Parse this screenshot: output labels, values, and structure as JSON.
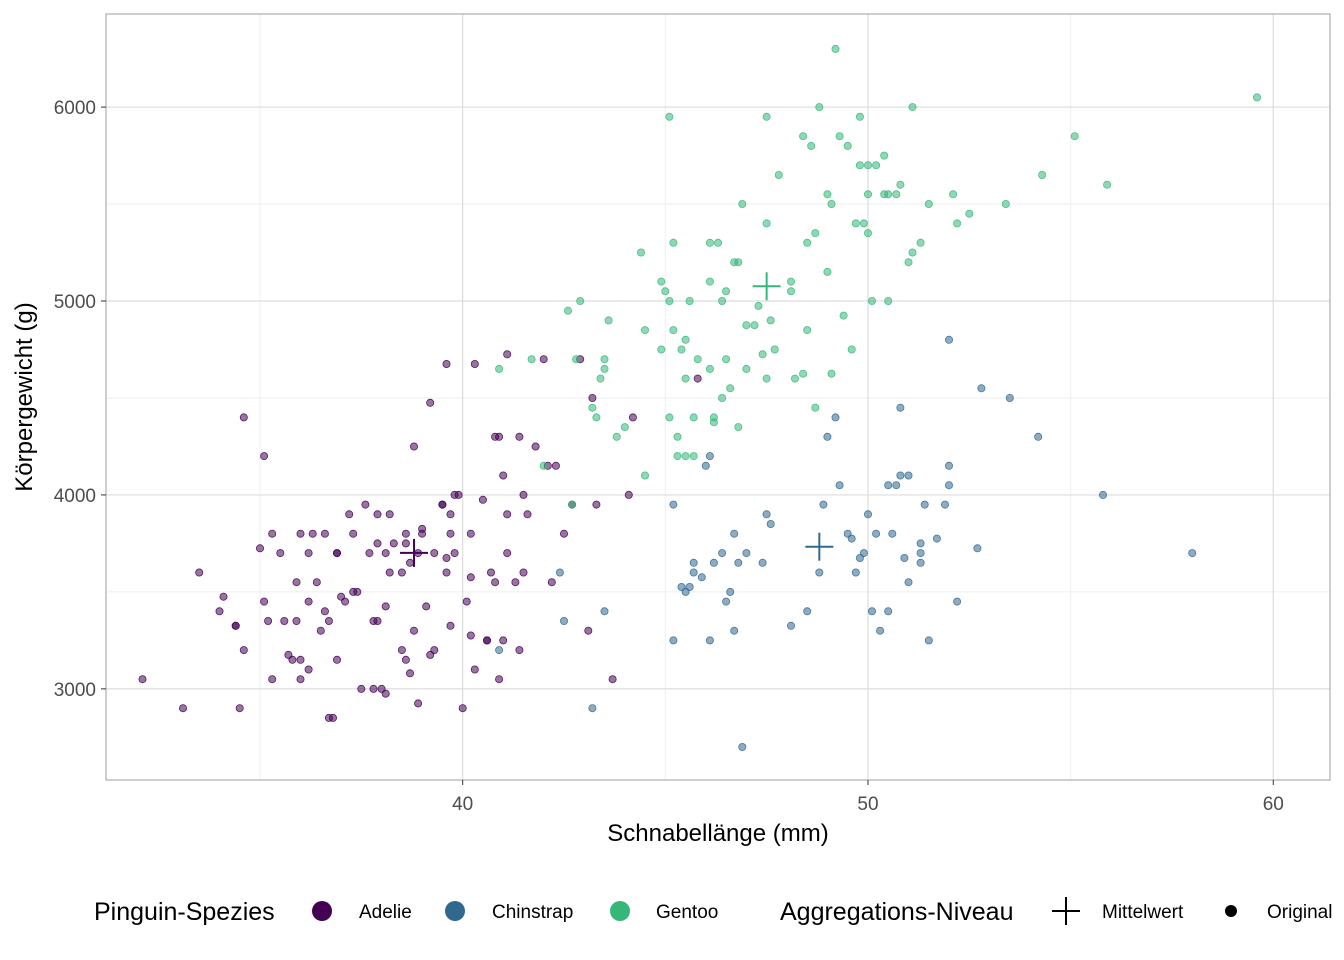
{
  "chart_data": {
    "type": "scatter",
    "title": "",
    "xlabel": "Schnabellänge (mm)",
    "ylabel": "Körpergewicht (g)",
    "xlim": [
      31.2,
      61.4
    ],
    "ylim": [
      2530,
      6480
    ],
    "x_ticks": [
      40,
      50,
      60
    ],
    "y_ticks": [
      3000,
      4000,
      5000,
      6000
    ],
    "grid": true,
    "legend_position": "bottom",
    "colors": {
      "Adelie": "#440154",
      "Chinstrap": "#31688e",
      "Gentoo": "#35b779",
      "panel_border": "#b3b3b3",
      "grid_major": "#dcdcdc",
      "grid_minor": "#efefef"
    },
    "legend": {
      "species_title": "Pinguin-Spezies",
      "species": [
        "Adelie",
        "Chinstrap",
        "Gentoo"
      ],
      "aggregation_title": "Aggregations-Niveau",
      "aggregation": [
        "Mittelwert",
        "Original"
      ]
    },
    "means": [
      {
        "name": "Adelie",
        "x": 38.8,
        "y": 3701
      },
      {
        "name": "Chinstrap",
        "x": 48.8,
        "y": 3733
      },
      {
        "name": "Gentoo",
        "x": 47.5,
        "y": 5076
      }
    ],
    "series": [
      {
        "name": "Adelie",
        "points": [
          [
            32.1,
            3050
          ],
          [
            33.1,
            2900
          ],
          [
            33.5,
            3600
          ],
          [
            34.0,
            3400
          ],
          [
            34.1,
            3475
          ],
          [
            34.4,
            3325
          ],
          [
            34.5,
            2900
          ],
          [
            34.6,
            4400
          ],
          [
            34.6,
            3200
          ],
          [
            35.0,
            3725
          ],
          [
            35.1,
            3450
          ],
          [
            35.1,
            4200
          ],
          [
            35.3,
            3050
          ],
          [
            35.3,
            3800
          ],
          [
            35.5,
            3700
          ],
          [
            35.6,
            3350
          ],
          [
            35.7,
            3175
          ],
          [
            35.8,
            3150
          ],
          [
            35.9,
            3550
          ],
          [
            35.9,
            3350
          ],
          [
            36.0,
            3800
          ],
          [
            36.0,
            3050
          ],
          [
            36.2,
            3450
          ],
          [
            36.2,
            3700
          ],
          [
            36.2,
            3100
          ],
          [
            36.3,
            3800
          ],
          [
            36.4,
            3550
          ],
          [
            36.5,
            3300
          ],
          [
            36.6,
            3400
          ],
          [
            36.7,
            3350
          ],
          [
            36.7,
            2850
          ],
          [
            36.8,
            2850
          ],
          [
            36.9,
            3150
          ],
          [
            36.9,
            3700
          ],
          [
            37.0,
            3475
          ],
          [
            37.1,
            3450
          ],
          [
            37.3,
            3500
          ],
          [
            37.3,
            3800
          ],
          [
            37.4,
            3500
          ],
          [
            37.5,
            3000
          ],
          [
            37.7,
            3700
          ],
          [
            37.8,
            3000
          ],
          [
            37.9,
            3750
          ],
          [
            37.9,
            3900
          ],
          [
            37.9,
            3350
          ],
          [
            38.0,
            3000
          ],
          [
            38.1,
            3700
          ],
          [
            38.1,
            2975
          ],
          [
            38.2,
            3600
          ],
          [
            38.2,
            3900
          ],
          [
            38.3,
            3750
          ],
          [
            38.5,
            3600
          ],
          [
            38.5,
            3200
          ],
          [
            38.6,
            3150
          ],
          [
            38.6,
            3750
          ],
          [
            38.7,
            3080
          ],
          [
            38.8,
            3300
          ],
          [
            38.8,
            4250
          ],
          [
            38.9,
            3700
          ],
          [
            38.9,
            2925
          ],
          [
            39.0,
            3825
          ],
          [
            39.1,
            3425
          ],
          [
            39.2,
            3175
          ],
          [
            39.2,
            4475
          ],
          [
            39.3,
            3700
          ],
          [
            39.5,
            3950
          ],
          [
            39.5,
            3950
          ],
          [
            39.6,
            3675
          ],
          [
            39.6,
            3600
          ],
          [
            39.7,
            3325
          ],
          [
            39.7,
            3800
          ],
          [
            39.8,
            3700
          ],
          [
            40.0,
            2900
          ],
          [
            40.1,
            3450
          ],
          [
            40.2,
            3575
          ],
          [
            40.2,
            3275
          ],
          [
            40.2,
            3800
          ],
          [
            40.3,
            3100
          ],
          [
            40.6,
            3250
          ],
          [
            40.6,
            3250
          ],
          [
            40.7,
            3600
          ],
          [
            40.8,
            3550
          ],
          [
            40.9,
            3050
          ],
          [
            41.0,
            3250
          ],
          [
            41.1,
            3900
          ],
          [
            41.3,
            3550
          ],
          [
            41.4,
            3200
          ],
          [
            41.6,
            3900
          ],
          [
            41.8,
            4250
          ],
          [
            42.0,
            4700
          ],
          [
            42.2,
            3550
          ],
          [
            42.3,
            4150
          ],
          [
            42.5,
            3800
          ],
          [
            42.7,
            3950
          ],
          [
            43.1,
            3300
          ],
          [
            43.3,
            3950
          ],
          [
            43.7,
            3050
          ],
          [
            44.1,
            4000
          ],
          [
            44.2,
            4400
          ],
          [
            45.8,
            4600
          ],
          [
            39.6,
            4675
          ],
          [
            39.7,
            3900
          ],
          [
            39.9,
            4000
          ],
          [
            40.3,
            4675
          ],
          [
            40.9,
            4300
          ],
          [
            41.0,
            4100
          ],
          [
            41.1,
            4725
          ],
          [
            41.4,
            4300
          ],
          [
            41.5,
            3600
          ],
          [
            42.9,
            4700
          ],
          [
            36.6,
            3800
          ],
          [
            37.2,
            3900
          ],
          [
            37.6,
            3950
          ],
          [
            38.1,
            3425
          ],
          [
            38.7,
            3650
          ],
          [
            39.0,
            3800
          ],
          [
            39.3,
            3200
          ],
          [
            39.8,
            4000
          ],
          [
            40.5,
            3975
          ],
          [
            40.8,
            4300
          ],
          [
            41.1,
            3700
          ],
          [
            41.5,
            4000
          ],
          [
            42.1,
            4150
          ],
          [
            43.2,
            4500
          ],
          [
            34.4,
            3325
          ],
          [
            35.2,
            3350
          ],
          [
            36.0,
            3150
          ],
          [
            36.9,
            3700
          ],
          [
            37.8,
            3350
          ],
          [
            38.6,
            3800
          ]
        ]
      },
      {
        "name": "Chinstrap",
        "points": [
          [
            40.9,
            3200
          ],
          [
            42.4,
            3600
          ],
          [
            42.5,
            3350
          ],
          [
            43.2,
            2900
          ],
          [
            43.5,
            3400
          ],
          [
            45.2,
            3250
          ],
          [
            45.2,
            3950
          ],
          [
            45.4,
            3525
          ],
          [
            45.5,
            3500
          ],
          [
            45.6,
            3525
          ],
          [
            45.7,
            3650
          ],
          [
            45.7,
            3600
          ],
          [
            45.9,
            3575
          ],
          [
            46.0,
            4150
          ],
          [
            46.1,
            3250
          ],
          [
            46.2,
            3650
          ],
          [
            46.4,
            3700
          ],
          [
            46.5,
            3450
          ],
          [
            46.6,
            3500
          ],
          [
            46.7,
            3800
          ],
          [
            46.8,
            3650
          ],
          [
            46.9,
            2700
          ],
          [
            47.0,
            3700
          ],
          [
            47.5,
            3900
          ],
          [
            47.6,
            3850
          ],
          [
            48.1,
            3325
          ],
          [
            48.5,
            3400
          ],
          [
            48.8,
            3600
          ],
          [
            48.9,
            3950
          ],
          [
            49.0,
            4300
          ],
          [
            49.2,
            4400
          ],
          [
            49.3,
            4050
          ],
          [
            49.5,
            3800
          ],
          [
            49.6,
            3775
          ],
          [
            49.7,
            3600
          ],
          [
            49.8,
            3675
          ],
          [
            50.0,
            3900
          ],
          [
            50.1,
            3400
          ],
          [
            50.2,
            3800
          ],
          [
            50.3,
            3300
          ],
          [
            50.5,
            3400
          ],
          [
            50.5,
            4050
          ],
          [
            50.6,
            3800
          ],
          [
            50.7,
            4050
          ],
          [
            50.8,
            4450
          ],
          [
            50.9,
            3675
          ],
          [
            51.0,
            3550
          ],
          [
            51.0,
            4100
          ],
          [
            51.3,
            3650
          ],
          [
            51.3,
            3750
          ],
          [
            51.3,
            3700
          ],
          [
            51.4,
            3950
          ],
          [
            51.5,
            3250
          ],
          [
            51.7,
            3775
          ],
          [
            51.9,
            3950
          ],
          [
            52.0,
            4050
          ],
          [
            52.0,
            4800
          ],
          [
            52.0,
            4150
          ],
          [
            52.2,
            3450
          ],
          [
            52.7,
            3725
          ],
          [
            52.8,
            4550
          ],
          [
            53.5,
            4500
          ],
          [
            54.2,
            4300
          ],
          [
            55.8,
            4000
          ],
          [
            58.0,
            3700
          ],
          [
            46.7,
            3300
          ],
          [
            47.4,
            3650
          ],
          [
            49.9,
            3700
          ],
          [
            50.8,
            4100
          ],
          [
            46.1,
            4200
          ]
        ]
      },
      {
        "name": "Gentoo",
        "points": [
          [
            40.9,
            4650
          ],
          [
            41.7,
            4700
          ],
          [
            42.0,
            4150
          ],
          [
            42.6,
            4950
          ],
          [
            42.7,
            3950
          ],
          [
            42.8,
            4700
          ],
          [
            42.9,
            5000
          ],
          [
            43.2,
            4450
          ],
          [
            43.3,
            4400
          ],
          [
            43.4,
            4600
          ],
          [
            43.5,
            4650
          ],
          [
            43.5,
            4700
          ],
          [
            43.6,
            4900
          ],
          [
            43.8,
            4300
          ],
          [
            44.0,
            4350
          ],
          [
            44.4,
            5250
          ],
          [
            44.5,
            4100
          ],
          [
            44.5,
            4850
          ],
          [
            44.9,
            4750
          ],
          [
            44.9,
            5100
          ],
          [
            45.0,
            5050
          ],
          [
            45.1,
            5000
          ],
          [
            45.1,
            4400
          ],
          [
            45.2,
            5300
          ],
          [
            45.2,
            4850
          ],
          [
            45.3,
            4300
          ],
          [
            45.3,
            4200
          ],
          [
            45.4,
            4750
          ],
          [
            45.5,
            4800
          ],
          [
            45.5,
            4200
          ],
          [
            45.6,
            5000
          ],
          [
            45.7,
            4400
          ],
          [
            45.7,
            4200
          ],
          [
            45.8,
            4700
          ],
          [
            46.1,
            4650
          ],
          [
            46.1,
            5100
          ],
          [
            46.2,
            4400
          ],
          [
            46.2,
            4375
          ],
          [
            46.3,
            5300
          ],
          [
            46.4,
            5000
          ],
          [
            46.5,
            4700
          ],
          [
            46.5,
            5050
          ],
          [
            46.6,
            4550
          ],
          [
            46.8,
            5200
          ],
          [
            46.8,
            4350
          ],
          [
            46.9,
            5500
          ],
          [
            47.0,
            4875
          ],
          [
            47.2,
            4875
          ],
          [
            47.3,
            4975
          ],
          [
            47.4,
            4725
          ],
          [
            47.5,
            5400
          ],
          [
            47.6,
            4900
          ],
          [
            47.7,
            4750
          ],
          [
            47.8,
            5650
          ],
          [
            48.1,
            5100
          ],
          [
            48.2,
            4600
          ],
          [
            48.4,
            5850
          ],
          [
            48.4,
            4625
          ],
          [
            48.5,
            5300
          ],
          [
            48.6,
            5800
          ],
          [
            48.7,
            5350
          ],
          [
            48.8,
            6000
          ],
          [
            49.0,
            5550
          ],
          [
            49.1,
            5500
          ],
          [
            49.1,
            4625
          ],
          [
            49.2,
            6300
          ],
          [
            49.3,
            5850
          ],
          [
            49.4,
            4925
          ],
          [
            49.5,
            5800
          ],
          [
            49.6,
            4750
          ],
          [
            49.8,
            5700
          ],
          [
            49.8,
            5950
          ],
          [
            49.9,
            5400
          ],
          [
            50.0,
            5700
          ],
          [
            50.0,
            5350
          ],
          [
            50.1,
            5000
          ],
          [
            50.2,
            5700
          ],
          [
            50.4,
            5550
          ],
          [
            50.5,
            5550
          ],
          [
            50.5,
            5000
          ],
          [
            50.7,
            5550
          ],
          [
            50.8,
            5600
          ],
          [
            51.1,
            6000
          ],
          [
            51.1,
            5250
          ],
          [
            51.3,
            5300
          ],
          [
            51.5,
            5500
          ],
          [
            52.1,
            5550
          ],
          [
            52.2,
            5400
          ],
          [
            52.5,
            5450
          ],
          [
            53.4,
            5500
          ],
          [
            54.3,
            5650
          ],
          [
            55.1,
            5850
          ],
          [
            55.9,
            5600
          ],
          [
            59.6,
            6050
          ],
          [
            45.1,
            5950
          ],
          [
            46.1,
            5300
          ],
          [
            46.7,
            5200
          ],
          [
            47.5,
            5950
          ],
          [
            48.5,
            4850
          ],
          [
            49.0,
            5150
          ],
          [
            50.0,
            5550
          ],
          [
            51.0,
            5200
          ],
          [
            45.5,
            4600
          ],
          [
            46.4,
            4500
          ],
          [
            47.0,
            4650
          ],
          [
            47.5,
            4600
          ],
          [
            48.1,
            5050
          ],
          [
            48.7,
            4450
          ],
          [
            49.7,
            5400
          ],
          [
            50.4,
            5750
          ]
        ]
      }
    ]
  }
}
